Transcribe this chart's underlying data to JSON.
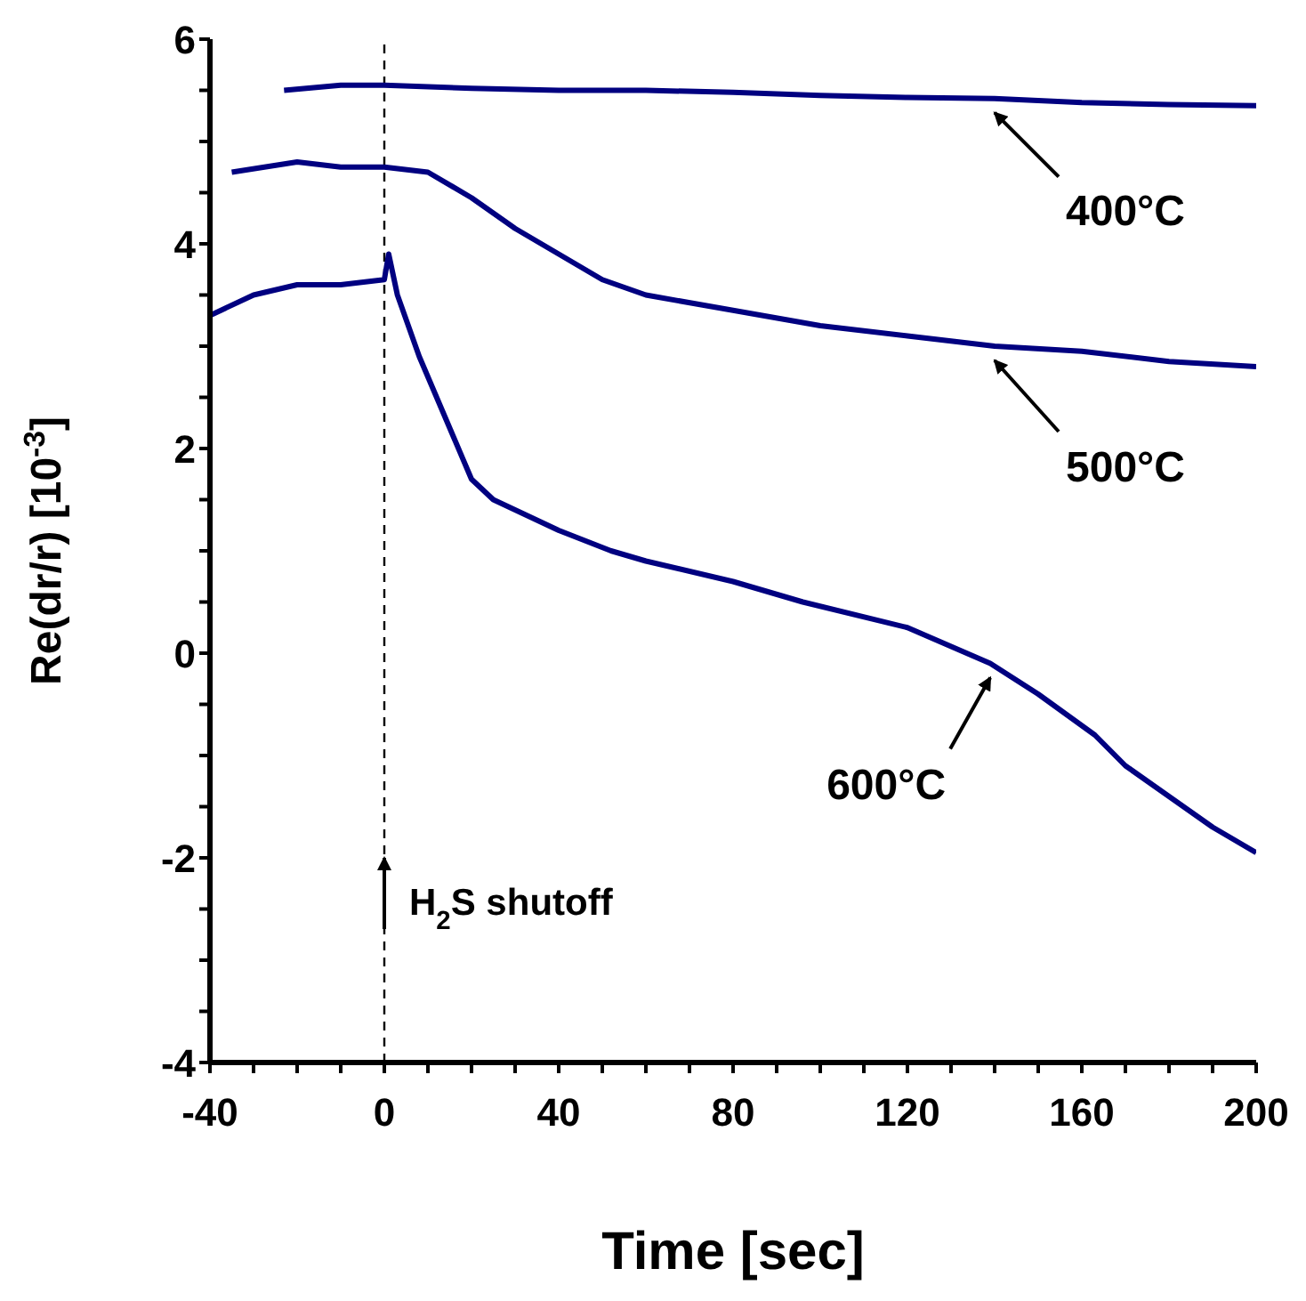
{
  "chart_data": {
    "type": "line",
    "xlabel": "Time [sec]",
    "ylabel": "Re(dr/r) [10$^{-3}$]",
    "xlim": [
      -40,
      200
    ],
    "ylim": [
      -4,
      6
    ],
    "xticks": [
      -40,
      {
        "value": -30,
        "label": null
      },
      {
        "value": -20,
        "label": null
      },
      {
        "value": -10,
        "label": null
      },
      0,
      {
        "value": 10,
        "label": null
      },
      {
        "value": 20,
        "label": null
      },
      {
        "value": 30,
        "label": null
      },
      40,
      {
        "value": 50,
        "label": null
      },
      {
        "value": 60,
        "label": null
      },
      {
        "value": 70,
        "label": null
      },
      80,
      {
        "value": 90,
        "label": null
      },
      {
        "value": 100,
        "label": null
      },
      {
        "value": 110,
        "label": null
      },
      120,
      {
        "value": 130,
        "label": null
      },
      {
        "value": 140,
        "label": null
      },
      {
        "value": 150,
        "label": null
      },
      160,
      {
        "value": 170,
        "label": null
      },
      {
        "value": 180,
        "label": null
      },
      {
        "value": 190,
        "label": null
      },
      200
    ],
    "yticks": [
      -4,
      {
        "value": -3.5,
        "label": null
      },
      {
        "value": -3,
        "label": null
      },
      {
        "value": -2.5,
        "label": null
      },
      -2,
      {
        "value": -1.5,
        "label": null
      },
      {
        "value": -1,
        "label": null
      },
      {
        "value": -0.5,
        "label": null
      },
      0,
      {
        "value": 0.5,
        "label": null
      },
      {
        "value": 1,
        "label": null
      },
      {
        "value": 1.5,
        "label": null
      },
      2,
      {
        "value": 2.5,
        "label": null
      },
      {
        "value": 3,
        "label": null
      },
      {
        "value": 3.5,
        "label": null
      },
      4,
      {
        "value": 4.5,
        "label": null
      },
      {
        "value": 5,
        "label": null
      },
      {
        "value": 5.5,
        "label": null
      },
      6
    ],
    "marker": "none",
    "line_style": "solid",
    "series": [
      {
        "name": "400°C",
        "color": "#000080",
        "x": [
          -23,
          -10,
          0,
          20,
          40,
          60,
          80,
          100,
          120,
          140,
          160,
          180,
          200
        ],
        "values": [
          5.5,
          5.55,
          5.55,
          5.52,
          5.5,
          5.5,
          5.48,
          5.45,
          5.43,
          5.42,
          5.38,
          5.36,
          5.35
        ]
      },
      {
        "name": "500°C",
        "color": "#000080",
        "x": [
          -35,
          -20,
          -10,
          0,
          10,
          20,
          30,
          40,
          50,
          60,
          80,
          100,
          120,
          140,
          160,
          180,
          200
        ],
        "values": [
          4.7,
          4.8,
          4.75,
          4.75,
          4.7,
          4.45,
          4.15,
          3.9,
          3.65,
          3.5,
          3.35,
          3.2,
          3.1,
          3.0,
          2.95,
          2.85,
          2.8
        ]
      },
      {
        "name": "600°C",
        "color": "#000080",
        "x": [
          -40,
          -30,
          -20,
          -10,
          0,
          1,
          3,
          8,
          15,
          20,
          25,
          30,
          40,
          52,
          60,
          80,
          96,
          120,
          139,
          150,
          163,
          170,
          180,
          190,
          200
        ],
        "values": [
          3.3,
          3.5,
          3.6,
          3.6,
          3.65,
          3.9,
          3.5,
          2.9,
          2.2,
          1.7,
          1.5,
          1.4,
          1.2,
          1.0,
          0.9,
          0.7,
          0.5,
          0.25,
          -0.1,
          -0.4,
          -0.8,
          -1.1,
          -1.4,
          -1.7,
          -1.95
        ]
      }
    ],
    "ref_lines": [
      {
        "axis": "x",
        "value": 0,
        "label": null,
        "line_style": "dashed",
        "color": "#000000"
      }
    ],
    "annotations": [
      {
        "text": "H$_{2}$S shutoff",
        "x": 0,
        "y": -2
      }
    ]
  }
}
